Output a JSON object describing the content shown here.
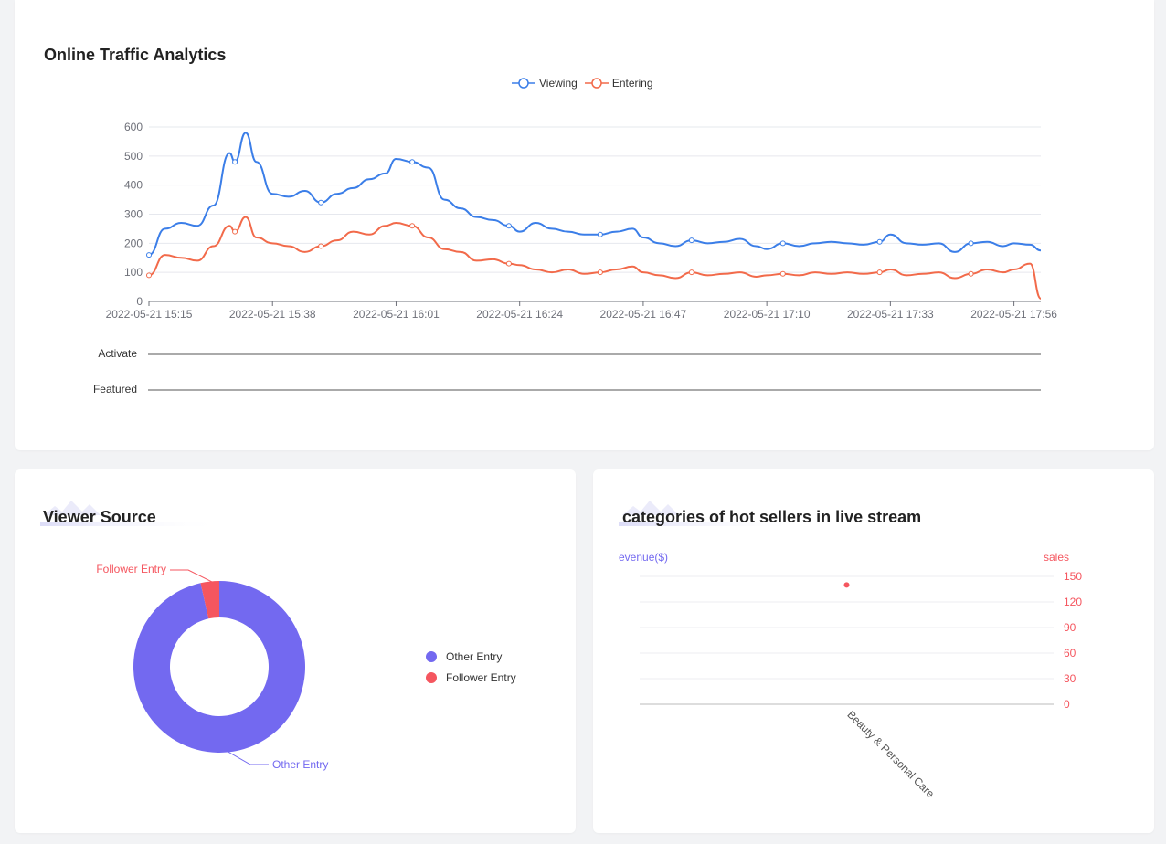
{
  "traffic": {
    "title": "Online Traffic Analytics",
    "legend": [
      {
        "label": "Viewing",
        "color": "#3b7ee8"
      },
      {
        "label": "Entering",
        "color": "#f26a4a"
      }
    ],
    "track_labels": [
      "Activate",
      "Featured"
    ]
  },
  "viewer_source": {
    "title": "Viewer Source",
    "legend": [
      {
        "label": "Other Entry",
        "color": "#7369f0"
      },
      {
        "label": "Follower Entry",
        "color": "#f5565f"
      }
    ],
    "callouts": {
      "follower": "Follower Entry",
      "other": "Other Entry"
    }
  },
  "hot_sellers": {
    "title": "categories of hot sellers in live stream",
    "left_axis_label": "evenue($)",
    "right_axis_label": "sales"
  },
  "chart_data": [
    {
      "type": "line",
      "title": "Online Traffic Analytics",
      "x_ticks": [
        "2022-05-21 15:15",
        "2022-05-21 15:38",
        "2022-05-21 16:01",
        "2022-05-21 16:24",
        "2022-05-21 16:47",
        "2022-05-21 17:10",
        "2022-05-21 17:33",
        "2022-05-21 17:56"
      ],
      "x_range": [
        "2022-05-21 15:15",
        "2022-05-21 18:01"
      ],
      "ylim": [
        0,
        600
      ],
      "y_ticks": [
        0,
        100,
        200,
        300,
        400,
        500,
        600
      ],
      "grid": true,
      "legend_position": "top-center",
      "series": [
        {
          "name": "Viewing",
          "color": "#3b7ee8",
          "x": [
            "15:15",
            "15:18",
            "15:21",
            "15:24",
            "15:27",
            "15:30",
            "15:31",
            "15:33",
            "15:35",
            "15:38",
            "15:41",
            "15:44",
            "15:47",
            "15:50",
            "15:53",
            "15:56",
            "15:59",
            "16:01",
            "16:04",
            "16:07",
            "16:10",
            "16:13",
            "16:16",
            "16:19",
            "16:22",
            "16:24",
            "16:27",
            "16:30",
            "16:33",
            "16:36",
            "16:39",
            "16:42",
            "16:45",
            "16:47",
            "16:50",
            "16:53",
            "16:56",
            "16:59",
            "17:02",
            "17:05",
            "17:08",
            "17:10",
            "17:13",
            "17:16",
            "17:19",
            "17:22",
            "17:25",
            "17:28",
            "17:31",
            "17:33",
            "17:36",
            "17:39",
            "17:42",
            "17:45",
            "17:48",
            "17:51",
            "17:54",
            "17:56",
            "17:59",
            "18:01"
          ],
          "values": [
            160,
            250,
            270,
            260,
            330,
            510,
            480,
            580,
            480,
            370,
            360,
            380,
            340,
            370,
            390,
            420,
            440,
            490,
            480,
            460,
            350,
            320,
            290,
            280,
            260,
            240,
            270,
            250,
            240,
            230,
            230,
            240,
            250,
            220,
            200,
            190,
            210,
            200,
            205,
            215,
            190,
            180,
            200,
            190,
            200,
            205,
            200,
            195,
            205,
            230,
            200,
            195,
            200,
            170,
            200,
            205,
            190,
            200,
            195,
            175
          ]
        },
        {
          "name": "Entering",
          "color": "#f26a4a",
          "x": [
            "15:15",
            "15:18",
            "15:21",
            "15:24",
            "15:27",
            "15:30",
            "15:31",
            "15:33",
            "15:35",
            "15:38",
            "15:41",
            "15:44",
            "15:47",
            "15:50",
            "15:53",
            "15:56",
            "15:59",
            "16:01",
            "16:04",
            "16:07",
            "16:10",
            "16:13",
            "16:16",
            "16:19",
            "16:22",
            "16:24",
            "16:27",
            "16:30",
            "16:33",
            "16:36",
            "16:39",
            "16:42",
            "16:45",
            "16:47",
            "16:50",
            "16:53",
            "16:56",
            "16:59",
            "17:02",
            "17:05",
            "17:08",
            "17:10",
            "17:13",
            "17:16",
            "17:19",
            "17:22",
            "17:25",
            "17:28",
            "17:31",
            "17:33",
            "17:36",
            "17:39",
            "17:42",
            "17:45",
            "17:48",
            "17:51",
            "17:54",
            "17:56",
            "17:59",
            "18:01"
          ],
          "values": [
            90,
            160,
            150,
            140,
            190,
            260,
            240,
            290,
            220,
            200,
            190,
            170,
            190,
            210,
            240,
            230,
            260,
            270,
            260,
            220,
            180,
            170,
            140,
            145,
            130,
            125,
            110,
            100,
            110,
            95,
            100,
            110,
            120,
            100,
            90,
            80,
            100,
            90,
            95,
            100,
            85,
            90,
            95,
            90,
            100,
            95,
            100,
            95,
            100,
            110,
            90,
            95,
            100,
            80,
            95,
            110,
            100,
            110,
            130,
            10
          ]
        }
      ]
    },
    {
      "type": "pie",
      "title": "Viewer Source",
      "labels": [
        "Other Entry",
        "Follower Entry"
      ],
      "values": [
        96.5,
        3.5
      ],
      "colors": [
        "#7369f0",
        "#f5565f"
      ],
      "donut": true,
      "legend_position": "right"
    },
    {
      "type": "scatter",
      "title": "categories of hot sellers in live stream",
      "categories": [
        "Beauty & Personal Care"
      ],
      "series": [
        {
          "name": "sales",
          "axis": "right",
          "color": "#f5565f",
          "values": [
            140
          ]
        }
      ],
      "left_axis_label": "evenue($)",
      "right_axis_label": "sales",
      "right_ylim": [
        0,
        150
      ],
      "right_y_ticks": [
        0,
        30,
        60,
        90,
        120,
        150
      ],
      "grid": true
    }
  ]
}
